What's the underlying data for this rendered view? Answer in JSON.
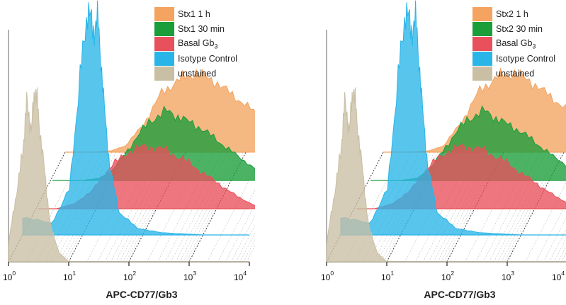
{
  "chart_data": [
    {
      "type": "area",
      "xlabel": "APC-CD77/Gb3",
      "x_scale": "log",
      "xlim": [
        1,
        10000
      ],
      "x_ticks": [
        {
          "base": "10",
          "exp": "0"
        },
        {
          "base": "10",
          "exp": "1"
        },
        {
          "base": "10",
          "exp": "2"
        },
        {
          "base": "10",
          "exp": "3"
        },
        {
          "base": "10",
          "exp": "4"
        }
      ],
      "legend_position": "top-right",
      "series": [
        {
          "name": "Stx1  1 h",
          "label_main": "Stx1  1 h",
          "label_sub": "",
          "color": "#f4a460",
          "x": [
            3,
            6,
            10,
            20,
            40,
            80,
            150,
            300,
            600,
            1200,
            2500,
            5000,
            8000
          ],
          "y": [
            0,
            2,
            8,
            35,
            75,
            92,
            100,
            90,
            72,
            55,
            30,
            8,
            0
          ]
        },
        {
          "name": "Stx1  30 min",
          "label_main": "Stx1  30 min",
          "label_sub": "",
          "color": "#1a9e3a",
          "x": [
            3,
            6,
            10,
            20,
            40,
            80,
            150,
            300,
            600,
            1200,
            2500,
            5000,
            8000
          ],
          "y": [
            0,
            3,
            15,
            50,
            85,
            100,
            88,
            75,
            55,
            35,
            15,
            3,
            0
          ]
        },
        {
          "name": "Basal Gb3",
          "label_main": "Basal Gb",
          "label_sub": "3",
          "color": "#e8505b",
          "x": [
            2,
            4,
            8,
            15,
            30,
            60,
            120,
            250,
            500,
            1000,
            2000,
            4000,
            7000
          ],
          "y": [
            0,
            8,
            30,
            65,
            90,
            100,
            95,
            80,
            60,
            40,
            20,
            5,
            0
          ]
        },
        {
          "name": "Isotype Control",
          "label_main": "Isotype Control",
          "label_sub": "",
          "color": "#29b5e8",
          "x": [
            1,
            3,
            6,
            9,
            12,
            15,
            18,
            22,
            28,
            40,
            80,
            200,
            1000
          ],
          "y": [
            8,
            5,
            20,
            70,
            100,
            90,
            95,
            60,
            30,
            10,
            3,
            1,
            0
          ]
        },
        {
          "name": "unstained",
          "label_main": "unstained",
          "label_sub": "",
          "color": "#c9bfa4",
          "x": [
            1,
            1.3,
            1.7,
            2,
            2.4,
            2.8,
            3.2,
            4,
            5,
            7,
            10
          ],
          "y": [
            10,
            35,
            60,
            90,
            75,
            100,
            80,
            50,
            20,
            5,
            0
          ]
        }
      ]
    },
    {
      "type": "area",
      "xlabel": "APC-CD77/Gb3",
      "x_scale": "log",
      "xlim": [
        1,
        10000
      ],
      "x_ticks": [
        {
          "base": "10",
          "exp": "0"
        },
        {
          "base": "10",
          "exp": "1"
        },
        {
          "base": "10",
          "exp": "2"
        },
        {
          "base": "10",
          "exp": "3"
        },
        {
          "base": "10",
          "exp": "4"
        }
      ],
      "legend_position": "top-right",
      "series": [
        {
          "name": "Stx2  1 h",
          "label_main": "Stx2  1 h",
          "label_sub": "",
          "color": "#f4a460",
          "x": [
            3,
            6,
            10,
            20,
            40,
            80,
            150,
            300,
            600,
            1200,
            2500,
            5000,
            8000
          ],
          "y": [
            0,
            2,
            8,
            38,
            78,
            95,
            100,
            88,
            70,
            52,
            28,
            8,
            0
          ]
        },
        {
          "name": "Stx2  30 min",
          "label_main": "Stx2  30 min",
          "label_sub": "",
          "color": "#1a9e3a",
          "x": [
            3,
            6,
            10,
            20,
            40,
            80,
            150,
            300,
            600,
            1200,
            2500,
            5000,
            8000
          ],
          "y": [
            0,
            3,
            18,
            55,
            88,
            100,
            85,
            72,
            52,
            32,
            14,
            3,
            0
          ]
        },
        {
          "name": "Basal Gb3",
          "label_main": "Basal Gb",
          "label_sub": "3",
          "color": "#e8505b",
          "x": [
            2,
            4,
            8,
            15,
            30,
            60,
            120,
            250,
            500,
            1000,
            2000,
            4000,
            7000
          ],
          "y": [
            0,
            8,
            30,
            65,
            90,
            100,
            95,
            80,
            60,
            40,
            20,
            5,
            0
          ]
        },
        {
          "name": "Isotype Control",
          "label_main": "Isotype Control",
          "label_sub": "",
          "color": "#29b5e8",
          "x": [
            1,
            3,
            6,
            9,
            12,
            15,
            18,
            22,
            28,
            40,
            80,
            200,
            1000
          ],
          "y": [
            8,
            5,
            20,
            70,
            100,
            90,
            95,
            60,
            30,
            10,
            3,
            1,
            0
          ]
        },
        {
          "name": "unstained",
          "label_main": "unstained",
          "label_sub": "",
          "color": "#c9bfa4",
          "x": [
            1,
            1.3,
            1.7,
            2,
            2.4,
            2.8,
            3.2,
            4,
            5,
            7,
            10
          ],
          "y": [
            10,
            35,
            60,
            90,
            75,
            100,
            80,
            50,
            20,
            5,
            0
          ]
        }
      ]
    }
  ]
}
